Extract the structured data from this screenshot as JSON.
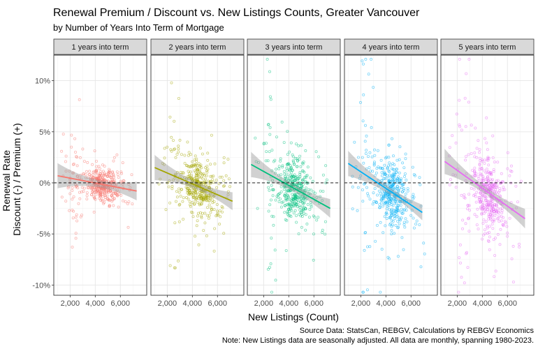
{
  "chart_data": {
    "type": "scatter",
    "title": "Renewal Premium / Discount vs. New Listings Counts, Greater Vancouver",
    "subtitle": "by Number of Years Into Term of Mortgage",
    "xlabel": "New Listings (Count)",
    "ylabel_lines": [
      "Renewal Rate",
      "Discount (-) / Premium (+)"
    ],
    "x_ticks": [
      2000,
      4000,
      6000
    ],
    "x_tick_labels": [
      "2,000",
      "4,000",
      "6,000"
    ],
    "y_ticks": [
      -10,
      -5,
      0,
      5,
      10
    ],
    "y_tick_labels": [
      "-10%",
      "-5%",
      "0%",
      "5%",
      "10%"
    ],
    "xlim": [
      700,
      8100
    ],
    "ylim": [
      -11,
      12.5
    ],
    "reference_line_y": 0,
    "grid": true,
    "caption_lines": [
      "Source Data: StatsCan, REBGV, Calculations by REBGV Economics",
      "Note: New Listings data are seasonally adjusted. All data are monthly, spanning 1980-2023."
    ],
    "panels": [
      {
        "label": "1 years into term",
        "color": "#F8766D",
        "trend": {
          "x": [
            1000,
            7300
          ],
          "y": [
            0.7,
            -0.8
          ]
        },
        "spread": 1.5
      },
      {
        "label": "2 years into term",
        "color": "#A3A500",
        "trend": {
          "x": [
            1000,
            7200
          ],
          "y": [
            1.5,
            -1.8
          ]
        },
        "spread": 2.3
      },
      {
        "label": "3 years into term",
        "color": "#00BF7D",
        "trend": {
          "x": [
            1000,
            7300
          ],
          "y": [
            1.8,
            -2.5
          ]
        },
        "spread": 2.7
      },
      {
        "label": "4 years into term",
        "color": "#00B0F6",
        "trend": {
          "x": [
            1000,
            6900
          ],
          "y": [
            1.9,
            -2.9
          ]
        },
        "spread": 3.0
      },
      {
        "label": "5 years into term",
        "color": "#E76BF3",
        "trend": {
          "x": [
            1000,
            7400
          ],
          "y": [
            2.1,
            -3.5
          ]
        },
        "spread": 3.2
      }
    ]
  }
}
